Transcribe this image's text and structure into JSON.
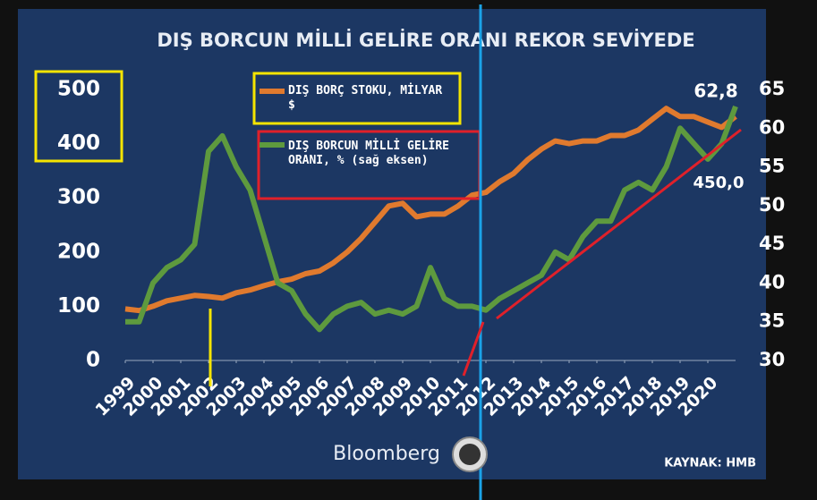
{
  "chart_data": {
    "type": "line",
    "title": "DIŞ BORCUN MİLLİ GELİRE ORANI REKOR SEVİYEDE",
    "x": [
      1999,
      1999.5,
      2000,
      2000.5,
      2001,
      2001.5,
      2002,
      2002.5,
      2003,
      2003.5,
      2004,
      2004.5,
      2005,
      2005.5,
      2006,
      2006.5,
      2007,
      2007.5,
      2008,
      2008.5,
      2009,
      2009.5,
      2010,
      2010.5,
      2011,
      2011.5,
      2012,
      2012.5,
      2013,
      2013.5,
      2014,
      2014.5,
      2015,
      2015.5,
      2016,
      2016.5,
      2017,
      2017.5,
      2018,
      2018.5,
      2019,
      2019.5,
      2020,
      2020.5,
      2021
    ],
    "xlim": [
      1999,
      2021
    ],
    "xticks": [
      1999,
      2000,
      2001,
      2002,
      2003,
      2004,
      2005,
      2006,
      2007,
      2008,
      2009,
      2010,
      2011,
      2012,
      2013,
      2014,
      2015,
      2016,
      2017,
      2018,
      2019,
      2020
    ],
    "ylim": [
      0,
      500
    ],
    "yticks": [
      0,
      100,
      200,
      300,
      400,
      500
    ],
    "y2lim": [
      30,
      65
    ],
    "y2ticks": [
      30,
      35,
      40,
      45,
      50,
      55,
      60,
      65
    ],
    "series": [
      {
        "name": "DIŞ BORÇ STOKU, MİLYAR $",
        "color": "#e07a2e",
        "axis": "y",
        "values": [
          95,
          92,
          100,
          110,
          115,
          120,
          118,
          115,
          125,
          130,
          138,
          145,
          150,
          160,
          165,
          180,
          200,
          225,
          255,
          285,
          290,
          265,
          270,
          270,
          285,
          305,
          310,
          330,
          345,
          370,
          390,
          405,
          400,
          405,
          405,
          415,
          415,
          425,
          445,
          465,
          450,
          450,
          440,
          430,
          450
        ],
        "end_label": "450,0"
      },
      {
        "name": "DIŞ BORCUN MİLLİ GELİRE ORANI, % (sağ eksen)",
        "color": "#5e9a3e",
        "axis": "y2",
        "values": [
          35,
          35,
          40,
          42,
          43,
          45,
          57,
          59,
          55,
          52,
          46,
          40,
          39,
          36,
          34,
          36,
          37,
          37.5,
          36,
          36.5,
          36,
          37,
          42,
          38,
          37,
          37,
          36.5,
          38,
          39,
          40,
          41,
          44,
          43,
          46,
          48,
          48,
          52,
          53,
          52,
          55,
          60,
          58,
          56,
          58,
          62.8
        ],
        "end_label": "62,8"
      }
    ],
    "brand": "Bloomberg",
    "source": "KAYNAK: HMB"
  }
}
